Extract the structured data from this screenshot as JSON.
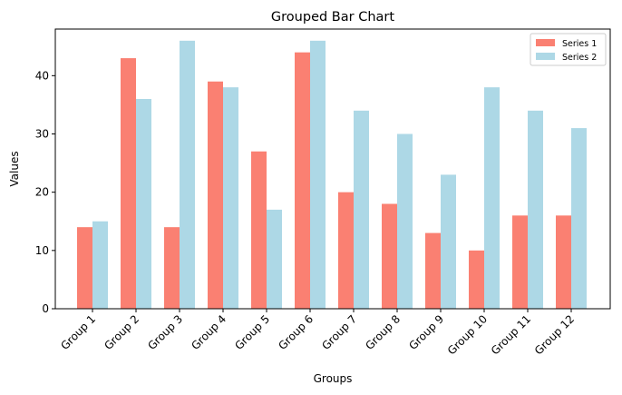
{
  "chart_data": {
    "type": "bar",
    "title": "Grouped Bar Chart",
    "xlabel": "Groups",
    "ylabel": "Values",
    "categories": [
      "Group 1",
      "Group 2",
      "Group 3",
      "Group 4",
      "Group 5",
      "Group 6",
      "Group 7",
      "Group 8",
      "Group 9",
      "Group 10",
      "Group 11",
      "Group 12"
    ],
    "series": [
      {
        "name": "Series 1",
        "color": "#fa8072",
        "values": [
          14,
          43,
          14,
          39,
          27,
          44,
          20,
          18,
          13,
          10,
          16,
          16
        ]
      },
      {
        "name": "Series 2",
        "color": "#add8e6",
        "values": [
          15,
          36,
          46,
          38,
          17,
          46,
          34,
          30,
          23,
          38,
          34,
          31
        ]
      }
    ],
    "ylim": [
      0,
      48
    ],
    "yticks": [
      0,
      10,
      20,
      30,
      40
    ],
    "grid": false,
    "legend": "top-right"
  }
}
